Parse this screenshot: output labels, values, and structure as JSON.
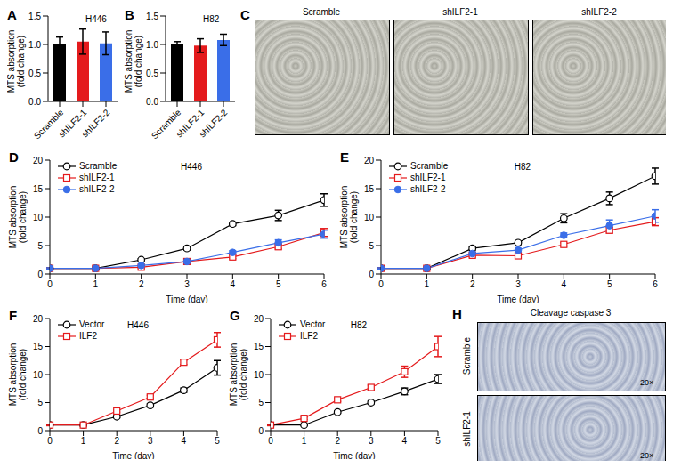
{
  "chart_data": [
    {
      "panel": "A",
      "type": "bar",
      "title": "H446",
      "y_label": [
        "MTS absorption",
        "(fold change)"
      ],
      "categories": [
        "Scramble",
        "shILF2-1",
        "shILF2-2"
      ],
      "values": [
        1.0,
        1.05,
        1.02
      ],
      "errors": [
        0.13,
        0.22,
        0.2
      ],
      "colors": [
        "#000000",
        "#e41a1c",
        "#3a6ee8"
      ],
      "ylim": [
        0,
        1.5
      ],
      "yticks": [
        {
          "value": 0,
          "label": "0.0"
        },
        0.5,
        {
          "value": 1,
          "label": "1.0"
        },
        1.5
      ],
      "grid": false
    },
    {
      "panel": "B",
      "type": "bar",
      "title": "H82",
      "y_label": [
        "MTS absorption",
        "(fold change)"
      ],
      "categories": [
        "Scramble",
        "shILF2-1",
        "shILF2-2"
      ],
      "values": [
        1.0,
        0.98,
        1.08
      ],
      "errors": [
        0.05,
        0.12,
        0.1
      ],
      "colors": [
        "#000000",
        "#e41a1c",
        "#3a6ee8"
      ],
      "ylim": [
        0,
        1.5
      ],
      "yticks": [
        {
          "value": 0,
          "label": "0.0"
        },
        0.5,
        {
          "value": 1,
          "label": "1.0"
        },
        1.5
      ],
      "grid": false
    },
    {
      "panel": "C",
      "type": "image",
      "labels": [
        "Scramble",
        "shILF2-1",
        "shILF2-2"
      ]
    },
    {
      "panel": "D",
      "type": "line",
      "title": "H446",
      "y_label": [
        "MTS absorption",
        "(fold change)"
      ],
      "x_label": "Time (day)",
      "x": [
        0,
        1,
        2,
        3,
        4,
        5,
        6
      ],
      "xlim": [
        0,
        6
      ],
      "xticks": [
        0,
        1,
        2,
        3,
        4,
        5,
        6
      ],
      "ylim": [
        0,
        20
      ],
      "yticks": [
        0,
        5,
        10,
        15,
        20
      ],
      "legend": "upper left",
      "grid": false,
      "series": [
        {
          "name": "Scramble",
          "color": "#000000",
          "marker": "open_circle",
          "values": [
            1,
            1,
            2.5,
            4.5,
            8.8,
            10.3,
            13
          ],
          "errors": [
            0.1,
            0.1,
            0.2,
            0.3,
            0.3,
            0.9,
            1.1
          ]
        },
        {
          "name": "shILF2-1",
          "color": "#e41a1c",
          "marker": "open_square",
          "values": [
            1,
            1,
            1.2,
            2.2,
            3.0,
            4.8,
            7.3
          ],
          "errors": [
            0.1,
            0.1,
            0.2,
            0.2,
            0.3,
            0.4,
            0.7
          ]
        },
        {
          "name": "shILF2-2",
          "color": "#3a6ee8",
          "marker": "circle",
          "values": [
            1,
            1,
            1.5,
            2.2,
            3.8,
            5.5,
            7.0
          ],
          "errors": [
            0.1,
            0.1,
            0.2,
            0.2,
            0.3,
            0.5,
            0.7
          ]
        }
      ]
    },
    {
      "panel": "E",
      "type": "line",
      "title": "H82",
      "y_label": [
        "MTS absorption",
        "(fold change)"
      ],
      "x_label": "Time (day)",
      "x": [
        0,
        1,
        2,
        3,
        4,
        5,
        6
      ],
      "xlim": [
        0,
        6
      ],
      "xticks": [
        0,
        1,
        2,
        3,
        4,
        5,
        6
      ],
      "ylim": [
        0,
        20
      ],
      "yticks": [
        0,
        5,
        10,
        15,
        20
      ],
      "legend": "upper left",
      "grid": false,
      "series": [
        {
          "name": "Scramble",
          "color": "#000000",
          "marker": "open_circle",
          "values": [
            1,
            1,
            4.5,
            5.5,
            9.8,
            13.3,
            17.2
          ],
          "errors": [
            0.1,
            0.1,
            0.3,
            0.3,
            0.8,
            1.1,
            1.4
          ]
        },
        {
          "name": "shILF2-1",
          "color": "#e41a1c",
          "marker": "open_square",
          "values": [
            1,
            1,
            3.3,
            3.2,
            5.2,
            7.7,
            9.2
          ],
          "errors": [
            0.1,
            0.1,
            0.3,
            0.3,
            0.3,
            0.5,
            0.7
          ]
        },
        {
          "name": "shILF2-2",
          "color": "#3a6ee8",
          "marker": "circle",
          "values": [
            1,
            1,
            3.6,
            4.2,
            6.8,
            8.5,
            10.2
          ],
          "errors": [
            0.1,
            0.1,
            0.3,
            0.3,
            0.4,
            1.0,
            1.1
          ]
        }
      ]
    },
    {
      "panel": "F",
      "type": "line",
      "title": "H446",
      "y_label": [
        "MTS absorption",
        "(fold change)"
      ],
      "x_label": "Time (day)",
      "x": [
        0,
        1,
        2,
        3,
        4,
        5
      ],
      "xlim": [
        0,
        5
      ],
      "xticks": [
        0,
        1,
        2,
        3,
        4,
        5
      ],
      "ylim": [
        0,
        20
      ],
      "yticks": [
        0,
        5,
        10,
        15,
        20
      ],
      "legend": "upper left",
      "grid": false,
      "series": [
        {
          "name": "Vector",
          "color": "#000000",
          "marker": "open_circle",
          "values": [
            1,
            1,
            2.5,
            4.5,
            7.2,
            11.2
          ],
          "errors": [
            0.1,
            0.1,
            0.2,
            0.3,
            0.4,
            1.3
          ]
        },
        {
          "name": "ILF2",
          "color": "#e41a1c",
          "marker": "open_square",
          "values": [
            1,
            1,
            3.5,
            6.0,
            12.2,
            16.2
          ],
          "errors": [
            0.1,
            0.1,
            0.2,
            0.3,
            0.4,
            1.3
          ]
        }
      ]
    },
    {
      "panel": "G",
      "type": "line",
      "title": "H82",
      "y_label": [
        "MTS absorption",
        "(fold change)"
      ],
      "x_label": "Time (day)",
      "x": [
        0,
        1,
        2,
        3,
        4,
        5
      ],
      "xlim": [
        0,
        5
      ],
      "xticks": [
        0,
        1,
        2,
        3,
        4,
        5
      ],
      "ylim": [
        0,
        20
      ],
      "yticks": [
        0,
        5,
        10,
        15,
        20
      ],
      "legend": "upper left",
      "grid": false,
      "series": [
        {
          "name": "Vector",
          "color": "#000000",
          "marker": "open_circle",
          "values": [
            1,
            1,
            3.3,
            5.0,
            7.0,
            9.2
          ],
          "errors": [
            0.1,
            0.1,
            0.2,
            0.3,
            0.6,
            0.8
          ]
        },
        {
          "name": "ILF2",
          "color": "#e41a1c",
          "marker": "open_square",
          "values": [
            1,
            2.2,
            5.5,
            7.7,
            10.5,
            15.0
          ],
          "errors": [
            0.1,
            0.2,
            0.3,
            0.4,
            1.0,
            1.8
          ]
        }
      ]
    },
    {
      "panel": "H",
      "type": "image",
      "title": "Cleavage caspase 3",
      "labels": [
        "Scramble",
        "shILF2-1"
      ],
      "annotations": [
        "20×"
      ]
    }
  ]
}
